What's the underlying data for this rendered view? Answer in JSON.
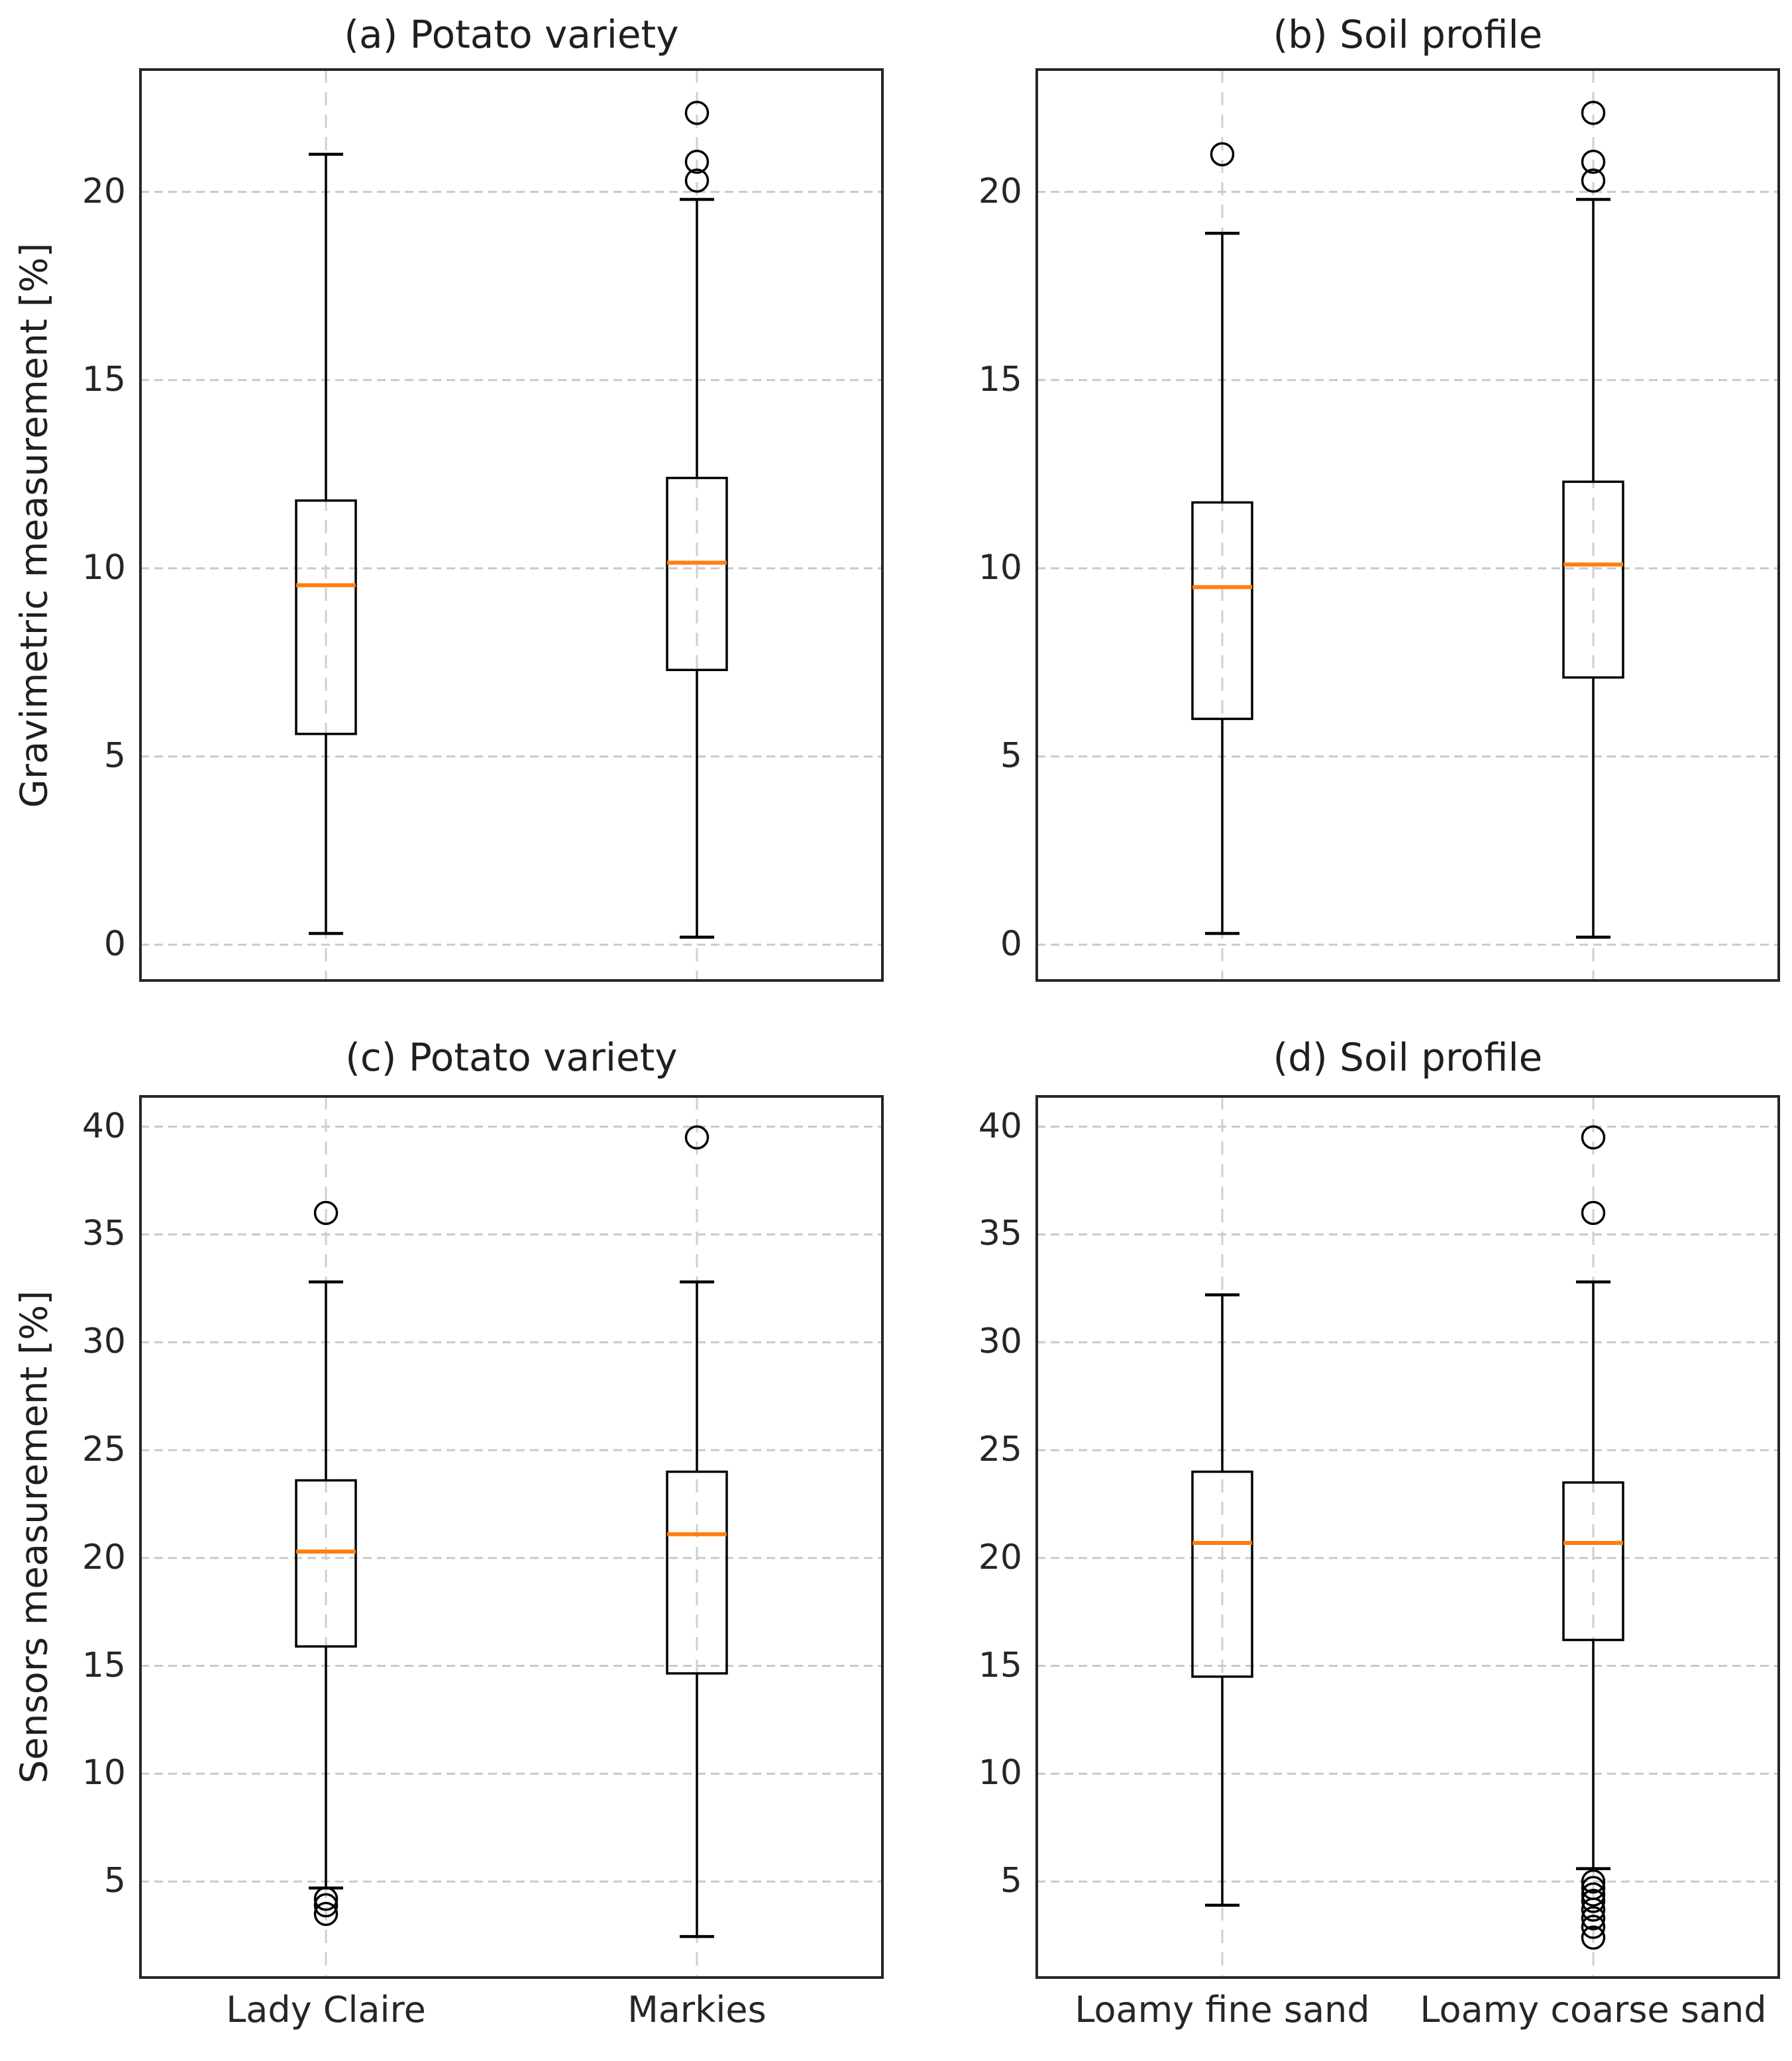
{
  "chart_data": {
    "type": "boxplot-grid",
    "title": "",
    "grid": "dashed horizontal and vertical gridlines",
    "legend": "none",
    "colors": {
      "background": "#ffffff",
      "box_edge": "#000000",
      "median": "#ff7f0e",
      "whisker": "#000000",
      "outlier": "#000000",
      "gridline": "#c9c9c9",
      "spine": "#262626",
      "text": "#1f1f1f"
    },
    "rows": [
      {
        "ylabel": "Gravimetric measurement [%]",
        "ylim": [
          -0.95,
          23.25
        ],
        "yticks": [
          0,
          5,
          10,
          15,
          20
        ]
      },
      {
        "ylabel": "Sensors measurement [%]",
        "ylim": [
          0.55,
          41.4
        ],
        "yticks": [
          5,
          10,
          15,
          20,
          25,
          30,
          35,
          40
        ]
      }
    ],
    "subplots": [
      {
        "id": "a",
        "title": "(a) Potato variety",
        "row": 0,
        "col": 0,
        "show_xlabels": false,
        "categories": [
          "Lady Claire",
          "Markies"
        ],
        "boxes": [
          {
            "whislo": 0.3,
            "q1": 5.6,
            "med": 9.55,
            "q3": 11.8,
            "whishi": 21.0,
            "fliers": []
          },
          {
            "whislo": 0.2,
            "q1": 7.3,
            "med": 10.15,
            "q3": 12.4,
            "whishi": 19.8,
            "fliers": [
              22.1,
              20.8,
              20.3
            ]
          }
        ]
      },
      {
        "id": "b",
        "title": "(b) Soil profile",
        "row": 0,
        "col": 1,
        "show_xlabels": false,
        "categories": [
          "Loamy fine sand",
          "Loamy coarse sand"
        ],
        "boxes": [
          {
            "whislo": 0.3,
            "q1": 6.0,
            "med": 9.5,
            "q3": 11.75,
            "whishi": 18.9,
            "fliers": [
              21.0
            ]
          },
          {
            "whislo": 0.2,
            "q1": 7.1,
            "med": 10.1,
            "q3": 12.3,
            "whishi": 19.8,
            "fliers": [
              22.1,
              20.8,
              20.3
            ]
          }
        ]
      },
      {
        "id": "c",
        "title": "(c) Potato variety",
        "row": 1,
        "col": 0,
        "show_xlabels": true,
        "categories": [
          "Lady Claire",
          "Markies"
        ],
        "boxes": [
          {
            "whislo": 4.7,
            "q1": 15.9,
            "med": 20.3,
            "q3": 23.6,
            "whishi": 32.8,
            "fliers": [
              36.0,
              4.2,
              3.9,
              3.5
            ]
          },
          {
            "whislo": 2.45,
            "q1": 14.65,
            "med": 21.1,
            "q3": 24.0,
            "whishi": 32.8,
            "fliers": [
              39.5
            ]
          }
        ]
      },
      {
        "id": "d",
        "title": "(d) Soil profile",
        "row": 1,
        "col": 1,
        "show_xlabels": true,
        "categories": [
          "Loamy fine sand",
          "Loamy coarse sand"
        ],
        "boxes": [
          {
            "whislo": 3.9,
            "q1": 14.5,
            "med": 20.7,
            "q3": 24.0,
            "whishi": 32.2,
            "fliers": []
          },
          {
            "whislo": 5.6,
            "q1": 16.2,
            "med": 20.7,
            "q3": 23.5,
            "whishi": 32.8,
            "fliers": [
              39.5,
              36.0,
              5.0,
              4.7,
              4.4,
              4.1,
              3.7,
              3.3,
              2.9,
              2.4
            ]
          }
        ]
      }
    ]
  }
}
